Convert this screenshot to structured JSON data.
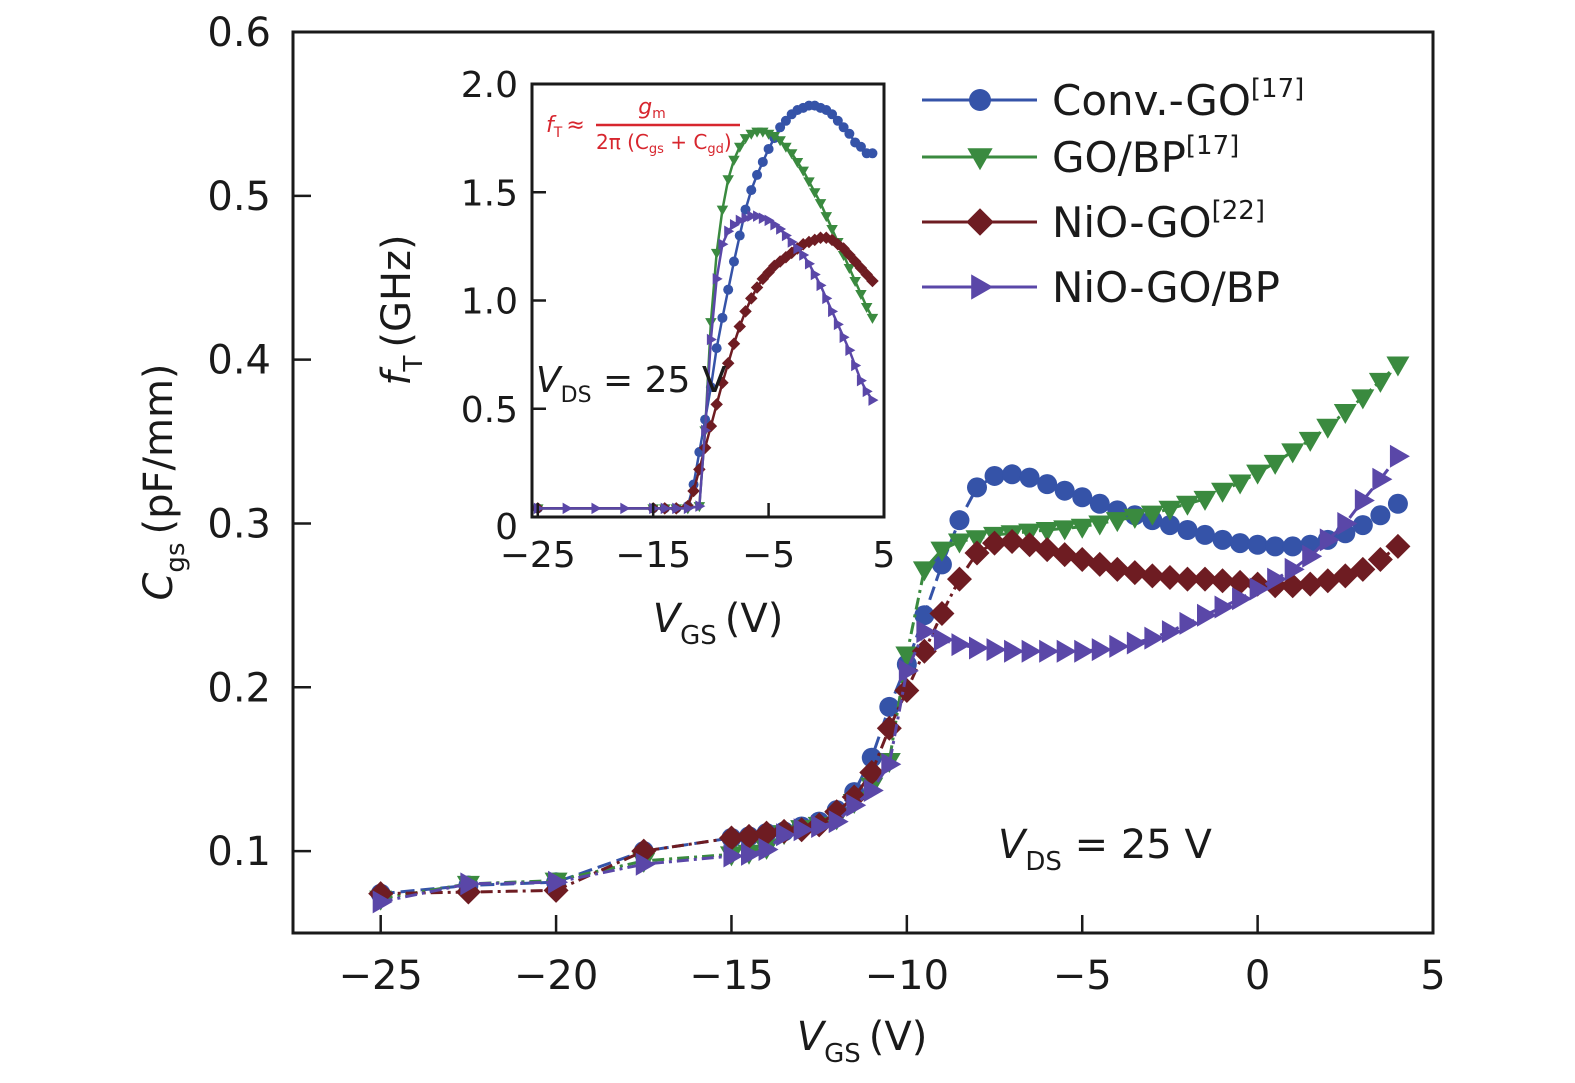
{
  "chart_data": [
    {
      "type": "line",
      "id": "main",
      "title": "",
      "xlabel": "V_GS (V)",
      "xlabel_main": "V",
      "xlabel_sub": "GS",
      "xlabel_unit": "(V)",
      "ylabel": "C_gs (pF/mm)",
      "ylabel_main": "C",
      "ylabel_sub": "gs",
      "ylabel_unit": "(pF/mm)",
      "xlim": [
        -27.5,
        5
      ],
      "ylim": [
        0.05,
        0.6
      ],
      "xticks": [
        -25,
        -20,
        -15,
        -10,
        -5,
        0,
        5
      ],
      "xtick_labels": [
        "−25",
        "−20",
        "−15",
        "−10",
        "−5",
        "0",
        "5"
      ],
      "yticks": [
        0.1,
        0.2,
        0.3,
        0.4,
        0.5,
        0.6
      ],
      "ytick_labels": [
        "0.1",
        "0.2",
        "0.3",
        "0.4",
        "0.5",
        "0.6"
      ],
      "grid": false,
      "legend_position": "top-right",
      "annotation": {
        "main": "V",
        "sub": "DS",
        "rest": " = 25 V"
      },
      "series": [
        {
          "name": "Conv.-GO",
          "ref": "[17]",
          "color": "#3553a8",
          "marker": "circle",
          "linestyle": "dash",
          "x": [
            -25,
            -22.5,
            -20,
            -17.5,
            -15,
            -14.5,
            -14,
            -13.5,
            -13,
            -12.5,
            -12,
            -11.5,
            -11,
            -10.5,
            -10,
            -9.5,
            -9,
            -8.5,
            -8,
            -7.5,
            -7,
            -6.5,
            -6,
            -5.5,
            -5,
            -4.5,
            -4,
            -3.5,
            -3,
            -2.5,
            -2,
            -1.5,
            -1,
            -0.5,
            0,
            0.5,
            1,
            1.5,
            2,
            2.5,
            3,
            3.5,
            4
          ],
          "y": [
            0.074,
            0.079,
            0.081,
            0.1,
            0.108,
            0.109,
            0.111,
            0.112,
            0.115,
            0.118,
            0.125,
            0.136,
            0.157,
            0.188,
            0.214,
            0.244,
            0.275,
            0.302,
            0.322,
            0.329,
            0.33,
            0.328,
            0.324,
            0.32,
            0.316,
            0.312,
            0.308,
            0.305,
            0.302,
            0.299,
            0.296,
            0.293,
            0.29,
            0.288,
            0.287,
            0.286,
            0.286,
            0.287,
            0.29,
            0.294,
            0.299,
            0.305,
            0.312
          ]
        },
        {
          "name": "GO/BP",
          "ref": "[17]",
          "color": "#3a8a3f",
          "marker": "triangle-down",
          "linestyle": "dashdot",
          "x": [
            -25,
            -22.5,
            -20,
            -17.5,
            -15,
            -14.5,
            -14,
            -13.5,
            -13,
            -12.5,
            -12,
            -11.5,
            -11,
            -10.5,
            -10,
            -9.5,
            -9,
            -8.5,
            -8,
            -7.5,
            -7,
            -6.5,
            -6,
            -5.5,
            -5,
            -4.5,
            -4,
            -3.5,
            -3,
            -2.5,
            -2,
            -1.5,
            -1,
            -0.5,
            0,
            0.5,
            1,
            1.5,
            2,
            2.5,
            3,
            3.5,
            4
          ],
          "y": [
            0.071,
            0.08,
            0.082,
            0.094,
            0.098,
            0.099,
            0.102,
            0.111,
            0.114,
            0.116,
            0.12,
            0.13,
            0.14,
            0.155,
            0.22,
            0.272,
            0.284,
            0.289,
            0.291,
            0.293,
            0.294,
            0.295,
            0.296,
            0.297,
            0.298,
            0.3,
            0.302,
            0.304,
            0.306,
            0.309,
            0.312,
            0.315,
            0.32,
            0.325,
            0.331,
            0.337,
            0.344,
            0.351,
            0.359,
            0.368,
            0.377,
            0.387,
            0.397
          ]
        },
        {
          "name": "NiO-GO",
          "ref": "[22]",
          "color": "#6e1c22",
          "marker": "diamond",
          "linestyle": "dashdot",
          "x": [
            -25,
            -22.5,
            -20,
            -17.5,
            -15,
            -14.5,
            -14,
            -13.5,
            -13,
            -12.5,
            -12,
            -11.5,
            -11,
            -10.5,
            -10,
            -9.5,
            -9,
            -8.5,
            -8,
            -7.5,
            -7,
            -6.5,
            -6,
            -5.5,
            -5,
            -4.5,
            -4,
            -3.5,
            -3,
            -2.5,
            -2,
            -1.5,
            -1,
            -0.5,
            0,
            0.5,
            1,
            1.5,
            2,
            2.5,
            3,
            3.5,
            4
          ],
          "y": [
            0.074,
            0.075,
            0.076,
            0.1,
            0.108,
            0.109,
            0.111,
            0.112,
            0.113,
            0.116,
            0.124,
            0.133,
            0.148,
            0.175,
            0.198,
            0.222,
            0.245,
            0.266,
            0.282,
            0.288,
            0.289,
            0.287,
            0.284,
            0.281,
            0.278,
            0.275,
            0.272,
            0.27,
            0.268,
            0.267,
            0.266,
            0.266,
            0.265,
            0.264,
            0.263,
            0.262,
            0.262,
            0.263,
            0.265,
            0.268,
            0.272,
            0.278,
            0.286
          ]
        },
        {
          "name": "NiO-GO/BP",
          "ref": "",
          "color": "#5a47a8",
          "marker": "triangle-right",
          "linestyle": "dashdot",
          "x": [
            -25,
            -22.5,
            -20,
            -17.5,
            -15,
            -14.5,
            -14,
            -13.5,
            -13,
            -12.5,
            -12,
            -11.5,
            -11,
            -10.5,
            -10,
            -9.5,
            -9,
            -8.5,
            -8,
            -7.5,
            -7,
            -6.5,
            -6,
            -5.5,
            -5,
            -4.5,
            -4,
            -3.5,
            -3,
            -2.5,
            -2,
            -1.5,
            -1,
            -0.5,
            0,
            0.5,
            1,
            1.5,
            2,
            2.5,
            3,
            3.5,
            4
          ],
          "y": [
            0.069,
            0.08,
            0.081,
            0.092,
            0.097,
            0.098,
            0.101,
            0.11,
            0.113,
            0.115,
            0.118,
            0.128,
            0.137,
            0.153,
            0.21,
            0.234,
            0.229,
            0.226,
            0.224,
            0.223,
            0.222,
            0.222,
            0.222,
            0.222,
            0.222,
            0.223,
            0.225,
            0.227,
            0.23,
            0.234,
            0.239,
            0.244,
            0.249,
            0.254,
            0.26,
            0.266,
            0.272,
            0.28,
            0.29,
            0.3,
            0.314,
            0.327,
            0.341
          ]
        }
      ]
    },
    {
      "type": "line",
      "id": "inset",
      "xlabel": "V_GS (V)",
      "xlabel_main": "V",
      "xlabel_sub": "GS",
      "xlabel_unit": "(V)",
      "ylabel": "f_T (GHz)",
      "ylabel_main": "f",
      "ylabel_sub": "T",
      "ylabel_unit": "(GHz)",
      "xlim": [
        -25.5,
        5
      ],
      "ylim": [
        0,
        2.0
      ],
      "xticks": [
        -25,
        -15,
        -5,
        5
      ],
      "xtick_labels": [
        "−25",
        "−15",
        "−5",
        "5"
      ],
      "yticks": [
        0,
        0.5,
        1.0,
        1.5,
        2.0
      ],
      "ytick_labels": [
        "0",
        "0.5",
        "1.0",
        "1.5",
        "2.0"
      ],
      "grid": false,
      "annotation": {
        "main": "V",
        "sub": "DS",
        "rest": " = 25 V"
      },
      "formula": {
        "lhs": "f",
        "lhs_sub": "T",
        "approx": "≈",
        "numerator": "g",
        "numerator_sub": "m",
        "denominator": "2π (C",
        "den_sub1": "gs",
        "den_mid": " + C",
        "den_sub2": "gd",
        "den_end": ")",
        "color": "#d7262e"
      },
      "series": [
        {
          "name": "Conv.-GO",
          "color": "#3553a8",
          "marker": "circle",
          "x": [
            -25,
            -15,
            -14,
            -13,
            -12,
            -11.5,
            -11,
            -10.5,
            -10,
            -9.5,
            -9,
            -8.5,
            -8,
            -7.5,
            -7,
            -6.5,
            -6,
            -5.5,
            -5,
            -4.5,
            -4,
            -3.5,
            -3,
            -2.5,
            -2,
            -1.5,
            -1,
            -0.5,
            0,
            0.5,
            1,
            1.5,
            2,
            2.5,
            3,
            3.5,
            4
          ],
          "y": [
            0.04,
            0.04,
            0.04,
            0.04,
            0.05,
            0.15,
            0.3,
            0.45,
            0.6,
            0.78,
            0.92,
            1.05,
            1.18,
            1.3,
            1.42,
            1.51,
            1.58,
            1.64,
            1.7,
            1.75,
            1.8,
            1.83,
            1.86,
            1.88,
            1.89,
            1.9,
            1.9,
            1.89,
            1.88,
            1.86,
            1.83,
            1.8,
            1.77,
            1.73,
            1.71,
            1.68,
            1.68
          ]
        },
        {
          "name": "GO/BP",
          "color": "#3a8a3f",
          "marker": "triangle-down",
          "x": [
            -25,
            -15,
            -14,
            -13,
            -12,
            -11,
            -10.5,
            -10,
            -9.5,
            -9,
            -8.5,
            -8,
            -7.5,
            -7,
            -6.5,
            -6,
            -5.5,
            -5,
            -4.5,
            -4,
            -3.5,
            -3,
            -2.5,
            -2,
            -1.5,
            -1,
            -0.5,
            0,
            0.5,
            1,
            1.5,
            2,
            2.5,
            3,
            3.5,
            4
          ],
          "y": [
            0.04,
            0.04,
            0.04,
            0.04,
            0.04,
            0.05,
            0.4,
            0.9,
            1.22,
            1.42,
            1.56,
            1.65,
            1.71,
            1.75,
            1.77,
            1.78,
            1.78,
            1.77,
            1.76,
            1.74,
            1.71,
            1.68,
            1.64,
            1.6,
            1.55,
            1.5,
            1.45,
            1.39,
            1.33,
            1.27,
            1.21,
            1.15,
            1.09,
            1.03,
            0.97,
            0.92
          ]
        },
        {
          "name": "NiO-GO",
          "color": "#6e1c22",
          "marker": "diamond",
          "x": [
            -25,
            -15,
            -14,
            -13,
            -12,
            -11.5,
            -11,
            -10.5,
            -10,
            -9.5,
            -9,
            -8.5,
            -8,
            -7.5,
            -7,
            -6.5,
            -6,
            -5.5,
            -5,
            -4.5,
            -4,
            -3.5,
            -3,
            -2.5,
            -2,
            -1.5,
            -1,
            -0.5,
            0,
            0.5,
            1,
            1.5,
            2,
            2.5,
            3,
            3.5,
            4
          ],
          "y": [
            0.04,
            0.04,
            0.04,
            0.04,
            0.05,
            0.12,
            0.22,
            0.32,
            0.42,
            0.52,
            0.62,
            0.71,
            0.8,
            0.88,
            0.95,
            1.01,
            1.06,
            1.1,
            1.13,
            1.16,
            1.18,
            1.2,
            1.22,
            1.24,
            1.26,
            1.27,
            1.28,
            1.29,
            1.29,
            1.28,
            1.26,
            1.24,
            1.21,
            1.18,
            1.15,
            1.12,
            1.09
          ]
        },
        {
          "name": "NiO-GO/BP",
          "color": "#5a47a8",
          "marker": "triangle-right",
          "x": [
            -25,
            -22.5,
            -20,
            -17.5,
            -15,
            -14,
            -13,
            -12,
            -11,
            -10.5,
            -10,
            -9.5,
            -9,
            -8.5,
            -8,
            -7.5,
            -7,
            -6.5,
            -6,
            -5.5,
            -5,
            -4.5,
            -4,
            -3.5,
            -3,
            -2.5,
            -2,
            -1.5,
            -1,
            -0.5,
            0,
            0.5,
            1,
            1.5,
            2,
            2.5,
            3,
            3.5,
            4
          ],
          "y": [
            0.04,
            0.04,
            0.04,
            0.04,
            0.04,
            0.04,
            0.04,
            0.04,
            0.05,
            0.4,
            0.82,
            1.1,
            1.26,
            1.32,
            1.35,
            1.37,
            1.38,
            1.39,
            1.39,
            1.38,
            1.37,
            1.35,
            1.33,
            1.3,
            1.27,
            1.24,
            1.21,
            1.17,
            1.12,
            1.07,
            1.01,
            0.95,
            0.89,
            0.83,
            0.77,
            0.7,
            0.63,
            0.58,
            0.54
          ]
        }
      ]
    }
  ],
  "legend": [
    {
      "label": "Conv.-GO",
      "ref": "[17]"
    },
    {
      "label": "GO/BP",
      "ref": "[17]"
    },
    {
      "label": "NiO-GO",
      "ref": "[22]"
    },
    {
      "label": "NiO-GO/BP",
      "ref": ""
    }
  ]
}
